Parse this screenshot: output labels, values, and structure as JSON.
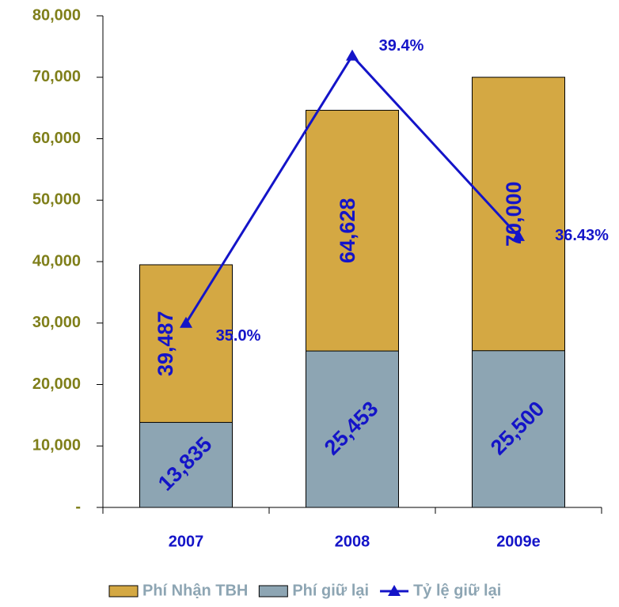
{
  "chart_data": {
    "type": "bar",
    "categories": [
      "2007",
      "2008",
      "2009e"
    ],
    "series": [
      {
        "name": "Phí Nhận TBH",
        "color": "#d4a843",
        "values": [
          39487,
          64628,
          70000
        ],
        "value_labels": [
          "39,487",
          "64,628",
          "70,000"
        ]
      },
      {
        "name": "Phí giữ lại",
        "color": "#8da5b3",
        "values": [
          13835,
          25453,
          25500
        ],
        "value_labels": [
          "13,835",
          "25,453",
          "25,500"
        ]
      },
      {
        "name": "Tỷ lệ giữ lại",
        "type": "line",
        "axis": "y2",
        "color": "#1414c8",
        "values": [
          35.0,
          39.4,
          36.43
        ],
        "value_labels": [
          "35.0%",
          "39.4%",
          "36.43%"
        ]
      }
    ],
    "ylim": [
      0,
      80000
    ],
    "yticks": [
      {
        "value": 0,
        "label": "-"
      },
      {
        "value": 10000,
        "label": "10,000"
      },
      {
        "value": 20000,
        "label": "20,000"
      },
      {
        "value": 30000,
        "label": "30,000"
      },
      {
        "value": 40000,
        "label": "40,000"
      },
      {
        "value": 50000,
        "label": "50,000"
      },
      {
        "value": 60000,
        "label": "60,000"
      },
      {
        "value": 70000,
        "label": "70,000"
      },
      {
        "value": 80000,
        "label": "80,000"
      }
    ],
    "y2lim": [
      31.966,
      40.058
    ],
    "grid": false
  }
}
